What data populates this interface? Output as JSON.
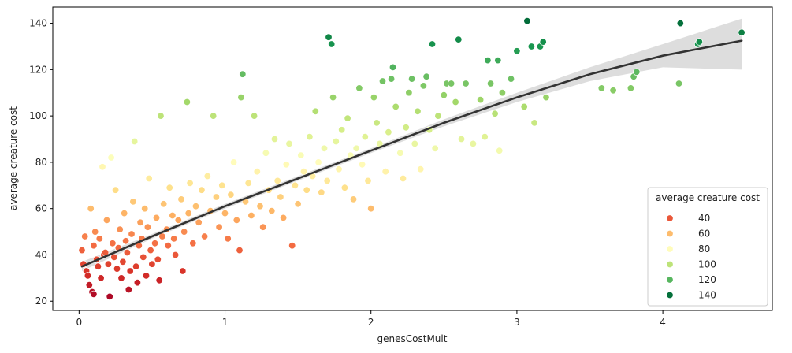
{
  "chart_data": {
    "type": "scatter",
    "xlabel": "genesCostMult",
    "ylabel": "average creature cost",
    "xlim": [
      -0.18,
      4.75
    ],
    "ylim": [
      16,
      147
    ],
    "xticks": [
      0,
      1,
      2,
      3,
      4
    ],
    "yticks": [
      20,
      40,
      60,
      80,
      100,
      120,
      140
    ],
    "x_tick_labels": [
      "0",
      "1",
      "2",
      "3",
      "4"
    ],
    "y_tick_labels": [
      "20",
      "40",
      "60",
      "80",
      "100",
      "120",
      "140"
    ],
    "grid": false,
    "legend": {
      "title": "average creature cost",
      "placement": "lower-right",
      "entries": [
        {
          "label": "40",
          "value": 40
        },
        {
          "label": "60",
          "value": 60
        },
        {
          "label": "80",
          "value": 80
        },
        {
          "label": "100",
          "value": 100
        },
        {
          "label": "120",
          "value": 120
        },
        {
          "label": "140",
          "value": 140
        }
      ]
    },
    "colormap": "RdYlGn",
    "color_range": [
      20,
      142
    ],
    "regression": {
      "type": "lowess-like fit with confidence band",
      "line_color": "#333333",
      "band_color": "#d9d9d9",
      "x": [
        0.02,
        0.5,
        1.0,
        1.5,
        2.0,
        2.5,
        3.0,
        3.5,
        4.0,
        4.54
      ],
      "y": [
        35,
        48,
        61,
        73,
        85,
        97,
        108,
        118,
        126,
        132.5
      ],
      "band_low": [
        33,
        47,
        60,
        72,
        84,
        95.5,
        106,
        115,
        121,
        120
      ],
      "band_high": [
        37,
        49,
        62,
        74,
        86,
        98.5,
        110,
        121,
        131,
        142
      ]
    },
    "points": [
      [
        0.02,
        42
      ],
      [
        0.03,
        36
      ],
      [
        0.04,
        48
      ],
      [
        0.05,
        33
      ],
      [
        0.06,
        31
      ],
      [
        0.07,
        27
      ],
      [
        0.08,
        60
      ],
      [
        0.09,
        24
      ],
      [
        0.1,
        23
      ],
      [
        0.1,
        44
      ],
      [
        0.11,
        50
      ],
      [
        0.12,
        38
      ],
      [
        0.13,
        35
      ],
      [
        0.14,
        47
      ],
      [
        0.15,
        30
      ],
      [
        0.16,
        78
      ],
      [
        0.17,
        40
      ],
      [
        0.18,
        41
      ],
      [
        0.19,
        55
      ],
      [
        0.2,
        36
      ],
      [
        0.21,
        22
      ],
      [
        0.22,
        82
      ],
      [
        0.23,
        45
      ],
      [
        0.24,
        39
      ],
      [
        0.25,
        68
      ],
      [
        0.26,
        34
      ],
      [
        0.27,
        43
      ],
      [
        0.28,
        51
      ],
      [
        0.29,
        30
      ],
      [
        0.3,
        37
      ],
      [
        0.31,
        58
      ],
      [
        0.32,
        46
      ],
      [
        0.33,
        41
      ],
      [
        0.34,
        25
      ],
      [
        0.35,
        33
      ],
      [
        0.36,
        49
      ],
      [
        0.37,
        63
      ],
      [
        0.38,
        89
      ],
      [
        0.39,
        35
      ],
      [
        0.4,
        28
      ],
      [
        0.41,
        44
      ],
      [
        0.42,
        54
      ],
      [
        0.43,
        47
      ],
      [
        0.44,
        39
      ],
      [
        0.45,
        60
      ],
      [
        0.46,
        31
      ],
      [
        0.47,
        52
      ],
      [
        0.48,
        73
      ],
      [
        0.49,
        42
      ],
      [
        0.5,
        36
      ],
      [
        0.52,
        45
      ],
      [
        0.53,
        56
      ],
      [
        0.54,
        38
      ],
      [
        0.55,
        29
      ],
      [
        0.56,
        100
      ],
      [
        0.57,
        48
      ],
      [
        0.58,
        62
      ],
      [
        0.6,
        51
      ],
      [
        0.61,
        44
      ],
      [
        0.62,
        69
      ],
      [
        0.64,
        57
      ],
      [
        0.65,
        47
      ],
      [
        0.66,
        40
      ],
      [
        0.68,
        55
      ],
      [
        0.7,
        64
      ],
      [
        0.71,
        33
      ],
      [
        0.72,
        50
      ],
      [
        0.74,
        106
      ],
      [
        0.75,
        58
      ],
      [
        0.76,
        71
      ],
      [
        0.78,
        45
      ],
      [
        0.8,
        61
      ],
      [
        0.82,
        54
      ],
      [
        0.84,
        68
      ],
      [
        0.86,
        48
      ],
      [
        0.88,
        74
      ],
      [
        0.9,
        59
      ],
      [
        0.92,
        100
      ],
      [
        0.94,
        65
      ],
      [
        0.96,
        52
      ],
      [
        0.98,
        70
      ],
      [
        1.0,
        58
      ],
      [
        1.02,
        47
      ],
      [
        1.04,
        66
      ],
      [
        1.06,
        80
      ],
      [
        1.08,
        55
      ],
      [
        1.1,
        42
      ],
      [
        1.11,
        108
      ],
      [
        1.12,
        118
      ],
      [
        1.14,
        63
      ],
      [
        1.16,
        71
      ],
      [
        1.18,
        57
      ],
      [
        1.2,
        100
      ],
      [
        1.22,
        76
      ],
      [
        1.24,
        61
      ],
      [
        1.26,
        52
      ],
      [
        1.28,
        84
      ],
      [
        1.3,
        68
      ],
      [
        1.32,
        59
      ],
      [
        1.34,
        90
      ],
      [
        1.36,
        72
      ],
      [
        1.38,
        65
      ],
      [
        1.4,
        56
      ],
      [
        1.42,
        79
      ],
      [
        1.44,
        88
      ],
      [
        1.46,
        44
      ],
      [
        1.48,
        70
      ],
      [
        1.5,
        62
      ],
      [
        1.52,
        83
      ],
      [
        1.54,
        76
      ],
      [
        1.56,
        68
      ],
      [
        1.58,
        91
      ],
      [
        1.6,
        74
      ],
      [
        1.62,
        102
      ],
      [
        1.64,
        80
      ],
      [
        1.66,
        67
      ],
      [
        1.68,
        86
      ],
      [
        1.7,
        72
      ],
      [
        1.71,
        134
      ],
      [
        1.73,
        131
      ],
      [
        1.74,
        108
      ],
      [
        1.76,
        89
      ],
      [
        1.78,
        77
      ],
      [
        1.8,
        94
      ],
      [
        1.82,
        69
      ],
      [
        1.84,
        99
      ],
      [
        1.86,
        83
      ],
      [
        1.88,
        64
      ],
      [
        1.9,
        86
      ],
      [
        1.92,
        112
      ],
      [
        1.94,
        79
      ],
      [
        1.96,
        91
      ],
      [
        1.98,
        72
      ],
      [
        2.0,
        60
      ],
      [
        2.02,
        108
      ],
      [
        2.04,
        97
      ],
      [
        2.06,
        88
      ],
      [
        2.08,
        115
      ],
      [
        2.1,
        76
      ],
      [
        2.12,
        93
      ],
      [
        2.14,
        116
      ],
      [
        2.15,
        121
      ],
      [
        2.17,
        104
      ],
      [
        2.2,
        84
      ],
      [
        2.22,
        73
      ],
      [
        2.24,
        95
      ],
      [
        2.26,
        110
      ],
      [
        2.28,
        116
      ],
      [
        2.3,
        88
      ],
      [
        2.32,
        102
      ],
      [
        2.34,
        77
      ],
      [
        2.36,
        113
      ],
      [
        2.38,
        117
      ],
      [
        2.4,
        94
      ],
      [
        2.42,
        131
      ],
      [
        2.44,
        86
      ],
      [
        2.46,
        100
      ],
      [
        2.5,
        109
      ],
      [
        2.52,
        114
      ],
      [
        2.55,
        114
      ],
      [
        2.58,
        106
      ],
      [
        2.6,
        133
      ],
      [
        2.62,
        90
      ],
      [
        2.65,
        114
      ],
      [
        2.7,
        88
      ],
      [
        2.75,
        107
      ],
      [
        2.78,
        91
      ],
      [
        2.8,
        124
      ],
      [
        2.82,
        114
      ],
      [
        2.85,
        101
      ],
      [
        2.87,
        124
      ],
      [
        2.88,
        85
      ],
      [
        2.9,
        110
      ],
      [
        2.96,
        116
      ],
      [
        3.0,
        128
      ],
      [
        3.05,
        104
      ],
      [
        3.07,
        141
      ],
      [
        3.1,
        130
      ],
      [
        3.12,
        97
      ],
      [
        3.16,
        130
      ],
      [
        3.18,
        132
      ],
      [
        3.2,
        108
      ],
      [
        3.58,
        112
      ],
      [
        3.66,
        111
      ],
      [
        3.78,
        112
      ],
      [
        3.8,
        117
      ],
      [
        3.82,
        119
      ],
      [
        4.11,
        114
      ],
      [
        4.12,
        140
      ],
      [
        4.24,
        131
      ],
      [
        4.25,
        132
      ],
      [
        4.54,
        136
      ]
    ]
  }
}
